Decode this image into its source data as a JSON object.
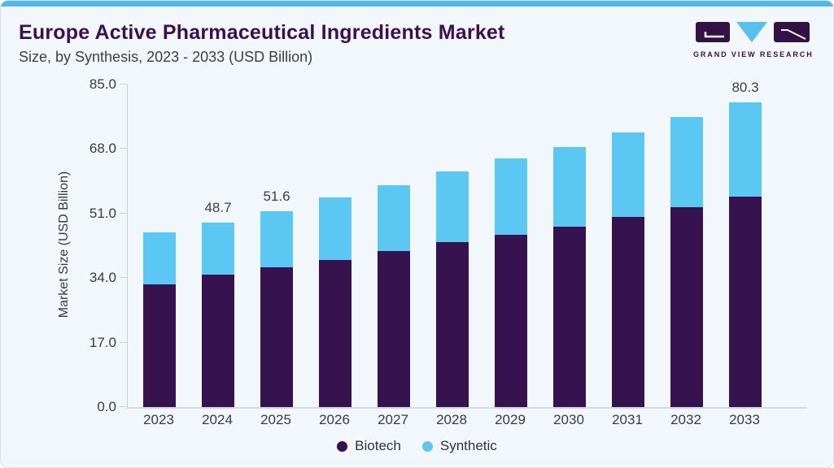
{
  "page": {
    "title": "Europe Active Pharmaceutical Ingredients Market",
    "subtitle": "Size, by Synthesis, 2023 - 2033 (USD Billion)"
  },
  "logo": {
    "name": "Grand View Research",
    "text": "GRAND VIEW RESEARCH",
    "colors": {
      "block": "#331147",
      "triangle": "#56C1EE",
      "text": "#3B1053"
    }
  },
  "colors": {
    "background": "#F2F7FB",
    "accent_stripe": "#4FB9E9",
    "title": "#3B1053",
    "axis_line": "#C9D2DB",
    "text": "#3A3A40",
    "biotech": "#36124E",
    "synthetic": "#5BC8F3"
  },
  "chart_data": {
    "type": "bar",
    "stacked": true,
    "title": "Europe Active Pharmaceutical Ingredients Market Size, by Synthesis, 2023 - 2033 (USD Billion)",
    "xlabel": "",
    "ylabel": "Market Size (USD Billion)",
    "ylim": [
      0,
      85
    ],
    "yticks": [
      0,
      17,
      34,
      51,
      68,
      85
    ],
    "ytick_labels": [
      "0.0",
      "17.0",
      "34.0",
      "51.0",
      "68.0",
      "85.0"
    ],
    "grid": false,
    "legend_position": "bottom",
    "categories": [
      "2023",
      "2024",
      "2025",
      "2026",
      "2027",
      "2028",
      "2029",
      "2030",
      "2031",
      "2032",
      "2033"
    ],
    "series": [
      {
        "name": "Biotech",
        "color": "#36124E",
        "values": [
          32.3,
          34.9,
          36.8,
          38.7,
          41.1,
          43.4,
          45.4,
          47.5,
          50.2,
          52.7,
          55.5
        ]
      },
      {
        "name": "Synthetic",
        "color": "#5BC8F3",
        "values": [
          13.7,
          13.8,
          14.8,
          16.5,
          17.3,
          18.6,
          20.2,
          21.0,
          22.2,
          23.8,
          24.8
        ]
      }
    ],
    "totals": [
      46.0,
      48.7,
      51.6,
      55.2,
      58.4,
      62.0,
      65.6,
      68.5,
      72.4,
      76.5,
      80.3
    ],
    "data_labels": {
      "2024": "48.7",
      "2025": "51.6",
      "2033": "80.3"
    }
  },
  "legend": {
    "items": [
      {
        "label": "Biotech",
        "color": "#36124E"
      },
      {
        "label": "Synthetic",
        "color": "#5BC8F3"
      }
    ]
  }
}
